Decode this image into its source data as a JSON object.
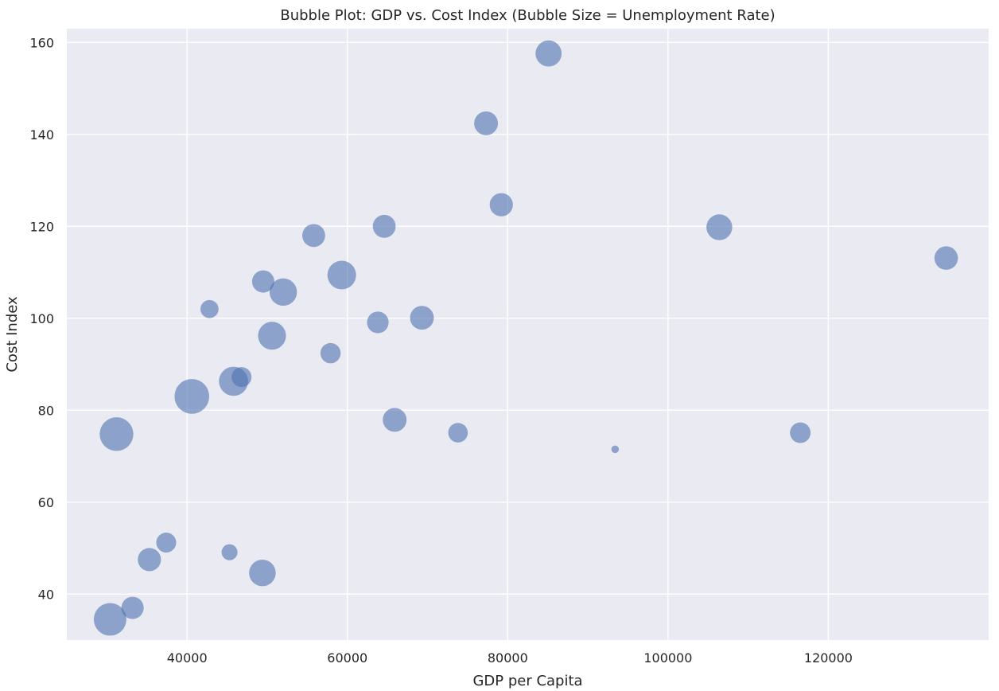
{
  "chart_data": {
    "type": "scatter",
    "title": "Bubble Plot: GDP vs. Cost Index (Bubble Size = Unemployment Rate)",
    "xlabel": "GDP per Capita",
    "ylabel": "Cost Index",
    "xlim": [
      25000,
      140000
    ],
    "ylim": [
      30,
      163
    ],
    "xticks": [
      40000,
      60000,
      80000,
      100000,
      120000
    ],
    "yticks": [
      40,
      60,
      80,
      100,
      120,
      140,
      160
    ],
    "grid": true,
    "color": "#4c72b0",
    "background": "#eaeaf2",
    "size_encoding": "Unemployment Rate (relative)",
    "points": [
      {
        "x": 30400,
        "y": 34.5,
        "size": 7.5
      },
      {
        "x": 31200,
        "y": 74.8,
        "size": 8.0
      },
      {
        "x": 33200,
        "y": 37.0,
        "size": 3.5
      },
      {
        "x": 35300,
        "y": 47.5,
        "size": 3.8
      },
      {
        "x": 37400,
        "y": 51.2,
        "size": 2.8
      },
      {
        "x": 40600,
        "y": 83.0,
        "size": 8.5
      },
      {
        "x": 42800,
        "y": 102.0,
        "size": 2.3
      },
      {
        "x": 45300,
        "y": 49.1,
        "size": 1.8
      },
      {
        "x": 45800,
        "y": 86.3,
        "size": 6.0
      },
      {
        "x": 46800,
        "y": 87.2,
        "size": 2.8
      },
      {
        "x": 49400,
        "y": 44.6,
        "size": 5.0
      },
      {
        "x": 49500,
        "y": 108.0,
        "size": 3.5
      },
      {
        "x": 50600,
        "y": 96.2,
        "size": 5.5
      },
      {
        "x": 52000,
        "y": 105.7,
        "size": 5.3
      },
      {
        "x": 55800,
        "y": 118.0,
        "size": 3.7
      },
      {
        "x": 57900,
        "y": 92.4,
        "size": 2.9
      },
      {
        "x": 59300,
        "y": 109.4,
        "size": 5.8
      },
      {
        "x": 63800,
        "y": 99.1,
        "size": 3.3
      },
      {
        "x": 64600,
        "y": 120.0,
        "size": 3.7
      },
      {
        "x": 65900,
        "y": 77.9,
        "size": 4.0
      },
      {
        "x": 69300,
        "y": 100.1,
        "size": 4.0
      },
      {
        "x": 73800,
        "y": 75.1,
        "size": 2.7
      },
      {
        "x": 77300,
        "y": 142.4,
        "size": 4.0
      },
      {
        "x": 79200,
        "y": 124.7,
        "size": 3.8
      },
      {
        "x": 85100,
        "y": 157.6,
        "size": 4.8
      },
      {
        "x": 93400,
        "y": 71.5,
        "size": 0.4
      },
      {
        "x": 106400,
        "y": 119.8,
        "size": 4.7
      },
      {
        "x": 116500,
        "y": 75.1,
        "size": 3.0
      },
      {
        "x": 134700,
        "y": 113.1,
        "size": 3.9
      }
    ]
  }
}
